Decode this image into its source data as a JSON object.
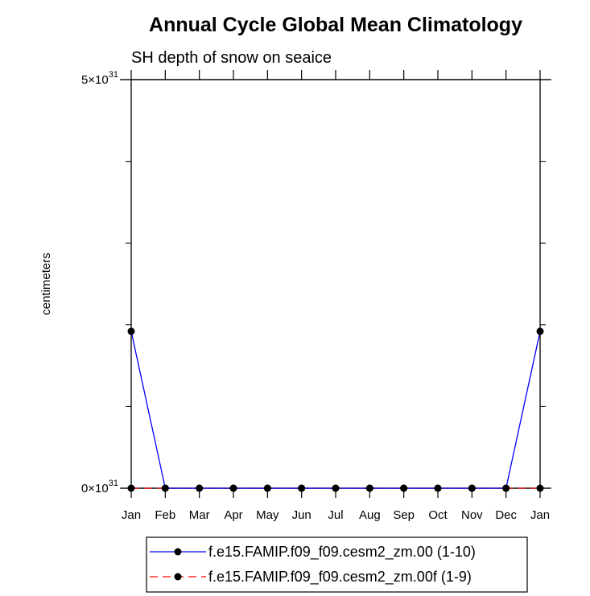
{
  "chart_data": {
    "type": "line",
    "title": "Annual Cycle Global Mean Climatology",
    "subtitle": "SH depth of snow on seaice",
    "xlabel": "",
    "ylabel": "centimeters",
    "categories": [
      "Jan",
      "Feb",
      "Mar",
      "Apr",
      "May",
      "Jun",
      "Jul",
      "Aug",
      "Sep",
      "Oct",
      "Nov",
      "Dec",
      "Jan"
    ],
    "ylim": [
      0,
      5e+31
    ],
    "y_tick_labels": [
      {
        "value": 0,
        "mantissa": "0",
        "times": "×10",
        "exponent": "31"
      },
      {
        "value": 5e+31,
        "mantissa": "5",
        "times": "×10",
        "exponent": "31"
      }
    ],
    "y_minor_ticks": [
      1e+31,
      2e+31,
      3e+31,
      4e+31
    ],
    "grid": false,
    "legend_position": "bottom",
    "series": [
      {
        "name": "f.e15.FAMIP.f09_f09.cesm2_zm.00 (1-10)",
        "color": "#0000ff",
        "line_style": "solid",
        "marker": "filled-circle",
        "values": [
          1.92e+31,
          0,
          0,
          0,
          0,
          0,
          0,
          0,
          0,
          0,
          0,
          0,
          1.92e+31
        ]
      },
      {
        "name": "f.e15.FAMIP.f09_f09.cesm2_zm.00f (1-9)",
        "color": "#ff0000",
        "line_style": "dashed",
        "marker": "filled-circle",
        "values": [
          0,
          0,
          0,
          0,
          0,
          0,
          0,
          0,
          0,
          0,
          0,
          0,
          0
        ]
      }
    ]
  }
}
